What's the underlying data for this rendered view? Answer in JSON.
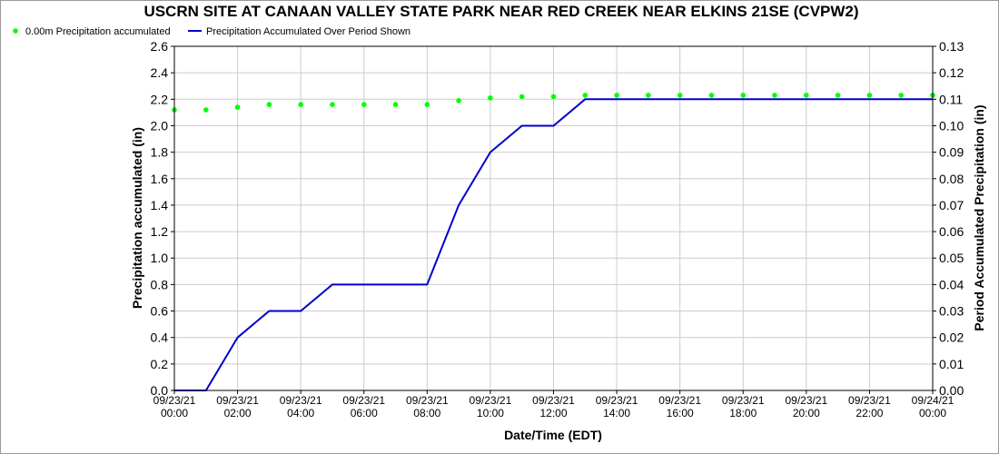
{
  "chart_data": {
    "type": "line",
    "title": "USCRN SITE AT CANAAN VALLEY STATE PARK NEAR RED CREEK NEAR ELKINS 21SE (CVPW2)",
    "xlabel": "Date/Time (EDT)",
    "ylabel_left": "Precipitation accumulated (in)",
    "ylabel_right": "Period Accumulated Precipitation (in)",
    "ylim_left": [
      0,
      2.6
    ],
    "ylim_right": [
      0,
      0.13
    ],
    "yticks_left": [
      "0.0",
      "0.2",
      "0.4",
      "0.6",
      "0.8",
      "1.0",
      "1.2",
      "1.4",
      "1.6",
      "1.8",
      "2.0",
      "2.2",
      "2.4",
      "2.6"
    ],
    "yticks_right": [
      "0.00",
      "0.01",
      "0.02",
      "0.03",
      "0.04",
      "0.05",
      "0.06",
      "0.07",
      "0.08",
      "0.09",
      "0.10",
      "0.11",
      "0.12",
      "0.13"
    ],
    "x_tick_labels": [
      [
        "09/23/21",
        "00:00"
      ],
      [
        "09/23/21",
        "02:00"
      ],
      [
        "09/23/21",
        "04:00"
      ],
      [
        "09/23/21",
        "06:00"
      ],
      [
        "09/23/21",
        "08:00"
      ],
      [
        "09/23/21",
        "10:00"
      ],
      [
        "09/23/21",
        "12:00"
      ],
      [
        "09/23/21",
        "14:00"
      ],
      [
        "09/23/21",
        "16:00"
      ],
      [
        "09/23/21",
        "18:00"
      ],
      [
        "09/23/21",
        "20:00"
      ],
      [
        "09/23/21",
        "22:00"
      ],
      [
        "09/24/21",
        "00:00"
      ]
    ],
    "grid": true,
    "legend_position": "top-left",
    "series": [
      {
        "name": "0.00m Precipitation accumulated",
        "style": "points",
        "axis": "left",
        "color": "#00ff00",
        "x": [
          "00:00",
          "01:00",
          "02:00",
          "03:00",
          "04:00",
          "05:00",
          "06:00",
          "07:00",
          "08:00",
          "09:00",
          "10:00",
          "11:00",
          "12:00",
          "13:00",
          "14:00",
          "15:00",
          "16:00",
          "17:00",
          "18:00",
          "19:00",
          "20:00",
          "21:00",
          "22:00",
          "23:00",
          "24:00"
        ],
        "values": [
          2.12,
          2.12,
          2.14,
          2.16,
          2.16,
          2.16,
          2.16,
          2.16,
          2.16,
          2.19,
          2.21,
          2.22,
          2.22,
          2.23,
          2.23,
          2.23,
          2.23,
          2.23,
          2.23,
          2.23,
          2.23,
          2.23,
          2.23,
          2.23,
          2.23
        ]
      },
      {
        "name": "Precipitation Accumulated Over Period Shown",
        "style": "line",
        "axis": "right",
        "color": "#0000cc",
        "x": [
          "00:00",
          "01:00",
          "02:00",
          "03:00",
          "04:00",
          "05:00",
          "06:00",
          "07:00",
          "08:00",
          "09:00",
          "10:00",
          "11:00",
          "12:00",
          "13:00",
          "14:00",
          "15:00",
          "16:00",
          "17:00",
          "18:00",
          "19:00",
          "20:00",
          "21:00",
          "22:00",
          "23:00",
          "24:00"
        ],
        "values": [
          0.0,
          0.0,
          0.02,
          0.03,
          0.03,
          0.04,
          0.04,
          0.04,
          0.04,
          0.07,
          0.09,
          0.1,
          0.1,
          0.11,
          0.11,
          0.11,
          0.11,
          0.11,
          0.11,
          0.11,
          0.11,
          0.11,
          0.11,
          0.11,
          0.11
        ]
      }
    ]
  }
}
